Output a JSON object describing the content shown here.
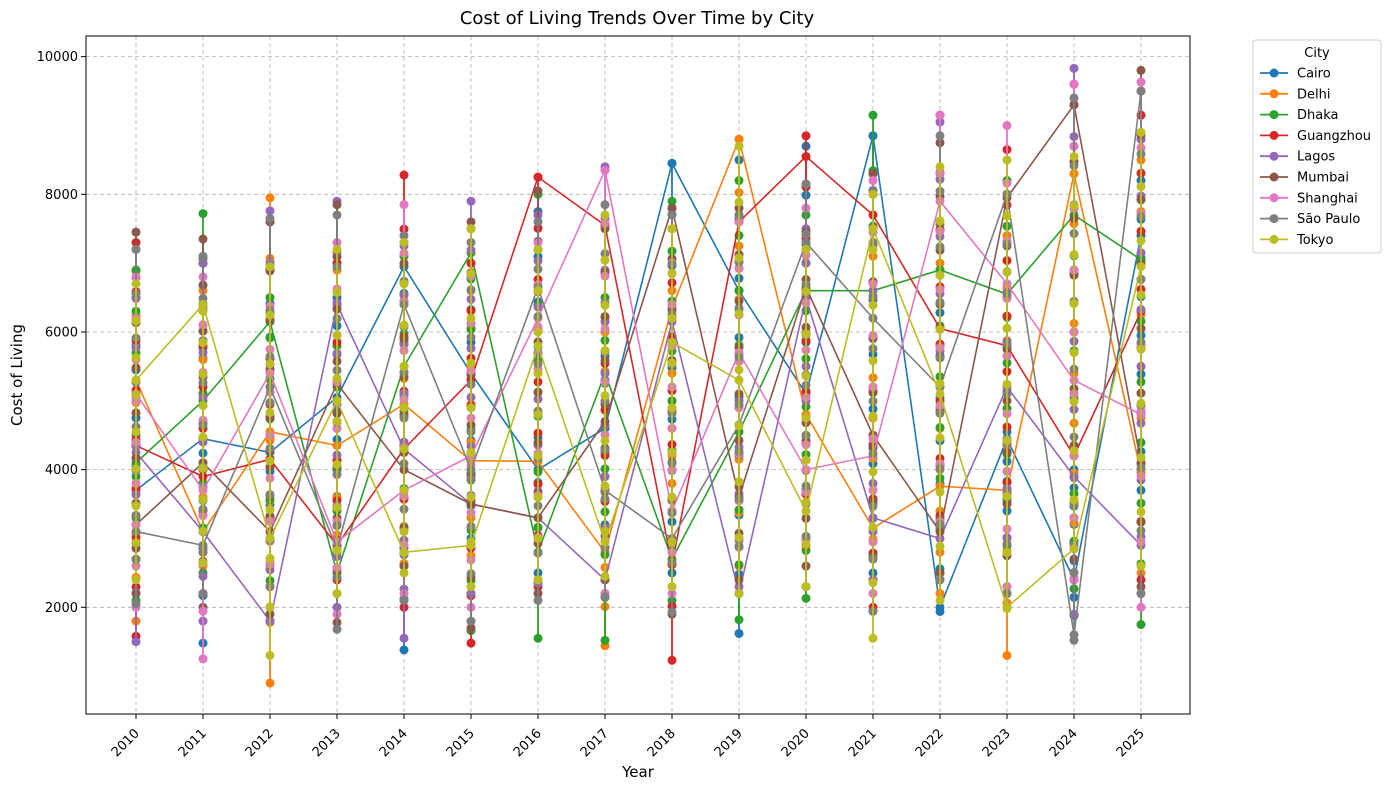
{
  "chart_data": {
    "type": "line",
    "title": "Cost of Living Trends Over Time by City",
    "xlabel": "Year",
    "ylabel": "Cost of Living",
    "x": [
      2010,
      2011,
      2012,
      2013,
      2014,
      2015,
      2016,
      2017,
      2018,
      2019,
      2020,
      2021,
      2022,
      2023,
      2024,
      2025
    ],
    "x_ticks": [
      "2010",
      "2011",
      "2012",
      "2013",
      "2014",
      "2015",
      "2016",
      "2017",
      "2018",
      "2019",
      "2020",
      "2021",
      "2022",
      "2023",
      "2024",
      "2025"
    ],
    "y_ticks": [
      2000,
      4000,
      6000,
      8000,
      10000
    ],
    "y_tick_labels": [
      "2000",
      "4000",
      "6000",
      "8000",
      "10000"
    ],
    "ylim": [
      450,
      10300
    ],
    "grid": true,
    "legend": {
      "title": "City",
      "placement": "outside-top-right"
    },
    "series": [
      {
        "name": "Cairo",
        "color": "#1f77b4",
        "line": [
          3700,
          4450,
          4250,
          5050,
          6950,
          5400,
          4000,
          4600,
          8450,
          6600,
          5100,
          8850,
          2000,
          4450,
          2400,
          7400
        ],
        "range": [
          [
            3700,
            6500
          ],
          [
            1480,
            7000
          ],
          [
            3000,
            6900
          ],
          [
            3200,
            6500
          ],
          [
            1380,
            7300
          ],
          [
            3000,
            6800
          ],
          [
            2500,
            7750
          ],
          [
            3200,
            6000
          ],
          [
            2500,
            8450
          ],
          [
            1620,
            8500
          ],
          [
            3000,
            8700
          ],
          [
            2500,
            8850
          ],
          [
            1940,
            6900
          ],
          [
            3400,
            4550
          ],
          [
            1880,
            4000
          ],
          [
            3700,
            8200
          ]
        ]
      },
      {
        "name": "Delhi",
        "color": "#ff7f0e",
        "line": [
          5300,
          3100,
          4550,
          4350,
          4950,
          4130,
          4120,
          2800,
          6350,
          8800,
          4800,
          3150,
          3760,
          3700,
          8300,
          3960
        ],
        "range": [
          [
            1800,
            6880
          ],
          [
            2600,
            6600
          ],
          [
            900,
            7950
          ],
          [
            2500,
            6900
          ],
          [
            2100,
            6400
          ],
          [
            2200,
            6600
          ],
          [
            2400,
            7200
          ],
          [
            1440,
            6000
          ],
          [
            3800,
            7000
          ],
          [
            2600,
            8800
          ],
          [
            2300,
            7200
          ],
          [
            2400,
            7100
          ],
          [
            2200,
            7000
          ],
          [
            1300,
            7400
          ],
          [
            2500,
            8300
          ],
          [
            2500,
            8500
          ]
        ]
      },
      {
        "name": "Dhaka",
        "color": "#2ca02c",
        "line": [
          4100,
          5000,
          6150,
          2500,
          5500,
          7150,
          2800,
          5400,
          2700,
          4550,
          6600,
          6600,
          6900,
          6550,
          7700,
          7050
        ],
        "range": [
          [
            2100,
            6900
          ],
          [
            2500,
            7720
          ],
          [
            1800,
            6500
          ],
          [
            2200,
            7000
          ],
          [
            2600,
            7100
          ],
          [
            1660,
            7500
          ],
          [
            1550,
            8000
          ],
          [
            1520,
            6500
          ],
          [
            2100,
            7900
          ],
          [
            1820,
            8200
          ],
          [
            2130,
            7700
          ],
          [
            2700,
            9150
          ],
          [
            2400,
            8300
          ],
          [
            2900,
            8200
          ],
          [
            2270,
            7800
          ],
          [
            1750,
            8800
          ]
        ]
      },
      {
        "name": "Guangzhou",
        "color": "#d62728",
        "line": [
          4350,
          3900,
          4150,
          2900,
          4300,
          5300,
          8250,
          7550,
          2620,
          7600,
          8550,
          7700,
          6050,
          5800,
          4200,
          6300
        ],
        "range": [
          [
            1580,
            7300
          ],
          [
            2200,
            7000
          ],
          [
            2300,
            7600
          ],
          [
            2400,
            7000
          ],
          [
            2000,
            8280
          ],
          [
            1480,
            7000
          ],
          [
            2300,
            8250
          ],
          [
            2200,
            7550
          ],
          [
            1230,
            7500
          ],
          [
            2200,
            7600
          ],
          [
            2900,
            8850
          ],
          [
            2000,
            8300
          ],
          [
            2500,
            9150
          ],
          [
            2200,
            8650
          ],
          [
            2400,
            9600
          ],
          [
            2400,
            9150
          ]
        ]
      },
      {
        "name": "Lagos",
        "color": "#9467bd",
        "line": [
          4250,
          3100,
          1800,
          6400,
          4300,
          3500,
          3300,
          2400,
          6150,
          2200,
          6500,
          3300,
          3000,
          5200,
          3900,
          2900
        ],
        "range": [
          [
            1500,
            7200
          ],
          [
            1800,
            7000
          ],
          [
            1800,
            7760
          ],
          [
            2000,
            7900
          ],
          [
            1550,
            7250
          ],
          [
            2200,
            7900
          ],
          [
            2350,
            7700
          ],
          [
            2400,
            8400
          ],
          [
            2300,
            7500
          ],
          [
            2300,
            7700
          ],
          [
            3500,
            7500
          ],
          [
            2400,
            8000
          ],
          [
            2400,
            9050
          ],
          [
            2300,
            8000
          ],
          [
            1900,
            9830
          ],
          [
            2200,
            8800
          ]
        ]
      },
      {
        "name": "Mumbai",
        "color": "#8c564b",
        "line": [
          3200,
          4100,
          3100,
          5250,
          4000,
          3500,
          3300,
          4700,
          7800,
          3600,
          6650,
          4500,
          3100,
          7950,
          9300,
          4100
        ],
        "range": [
          [
            2200,
            7450
          ],
          [
            2000,
            7350
          ],
          [
            1900,
            7600
          ],
          [
            1780,
            7850
          ],
          [
            2600,
            7000
          ],
          [
            1700,
            7600
          ],
          [
            2200,
            8050
          ],
          [
            2400,
            7500
          ],
          [
            1900,
            7800
          ],
          [
            2400,
            7800
          ],
          [
            2600,
            8150
          ],
          [
            1950,
            8300
          ],
          [
            2500,
            8750
          ],
          [
            2000,
            8000
          ],
          [
            2700,
            9300
          ],
          [
            2300,
            9800
          ]
        ]
      },
      {
        "name": "Shanghai",
        "color": "#e377c2",
        "line": [
          5100,
          3700,
          5400,
          2950,
          3700,
          4200,
          6200,
          8350,
          3400,
          5700,
          4000,
          4200,
          7900,
          6700,
          5300,
          4800
        ],
        "range": [
          [
            2000,
            6800
          ],
          [
            1250,
            6800
          ],
          [
            2000,
            7000
          ],
          [
            1900,
            7300
          ],
          [
            2200,
            7850
          ],
          [
            2000,
            7500
          ],
          [
            2400,
            7300
          ],
          [
            2200,
            8350
          ],
          [
            2200,
            7000
          ],
          [
            2200,
            7600
          ],
          [
            2300,
            7800
          ],
          [
            2200,
            8200
          ],
          [
            2400,
            9150
          ],
          [
            2300,
            9000
          ],
          [
            2400,
            9600
          ],
          [
            2000,
            9630
          ]
        ]
      },
      {
        "name": "São Paulo",
        "color": "#7f7f7f",
        "line": [
          3100,
          2900,
          5200,
          2850,
          6400,
          4000,
          6650,
          3700,
          3000,
          4650,
          7300,
          6200,
          5200,
          8000,
          1600,
          9500
        ],
        "range": [
          [
            2050,
            7200
          ],
          [
            2200,
            7100
          ],
          [
            2300,
            7650
          ],
          [
            1680,
            7700
          ],
          [
            2100,
            7400
          ],
          [
            1800,
            7300
          ],
          [
            2100,
            7600
          ],
          [
            2150,
            7850
          ],
          [
            1930,
            7700
          ],
          [
            2200,
            7700
          ],
          [
            2300,
            8150
          ],
          [
            1940,
            8050
          ],
          [
            2400,
            8850
          ],
          [
            2200,
            8000
          ],
          [
            1520,
            9400
          ],
          [
            2200,
            9500
          ]
        ]
      },
      {
        "name": "Tokyo",
        "color": "#bcbd22",
        "line": [
          5300,
          6400,
          3000,
          5000,
          2800,
          2900,
          5800,
          2950,
          5850,
          5300,
          3400,
          7500,
          5100,
          2000,
          2850,
          6950
        ],
        "range": [
          [
            2400,
            6700
          ],
          [
            2650,
            6300
          ],
          [
            1300,
            6950
          ],
          [
            2200,
            7200
          ],
          [
            2500,
            7300
          ],
          [
            2300,
            7500
          ],
          [
            2400,
            7200
          ],
          [
            2450,
            7700
          ],
          [
            2300,
            7500
          ],
          [
            2200,
            8700
          ],
          [
            2300,
            7200
          ],
          [
            1550,
            8000
          ],
          [
            2100,
            8400
          ],
          [
            1980,
            8500
          ],
          [
            2850,
            8550
          ],
          [
            2600,
            8900
          ]
        ]
      }
    ]
  }
}
